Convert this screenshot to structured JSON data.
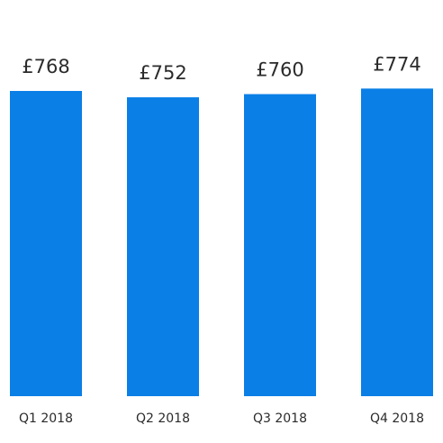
{
  "chart_data": {
    "type": "bar",
    "title": "",
    "xlabel": "",
    "ylabel": "",
    "categories": [
      "Q1 2018",
      "Q2 2018",
      "Q3 2018",
      "Q4 2018"
    ],
    "values": [
      768,
      752,
      760,
      774
    ],
    "value_labels": [
      "£768",
      "£752",
      "£760",
      "£774"
    ],
    "bar_color": "#0a7fe6",
    "grid": false,
    "legend": "none"
  }
}
